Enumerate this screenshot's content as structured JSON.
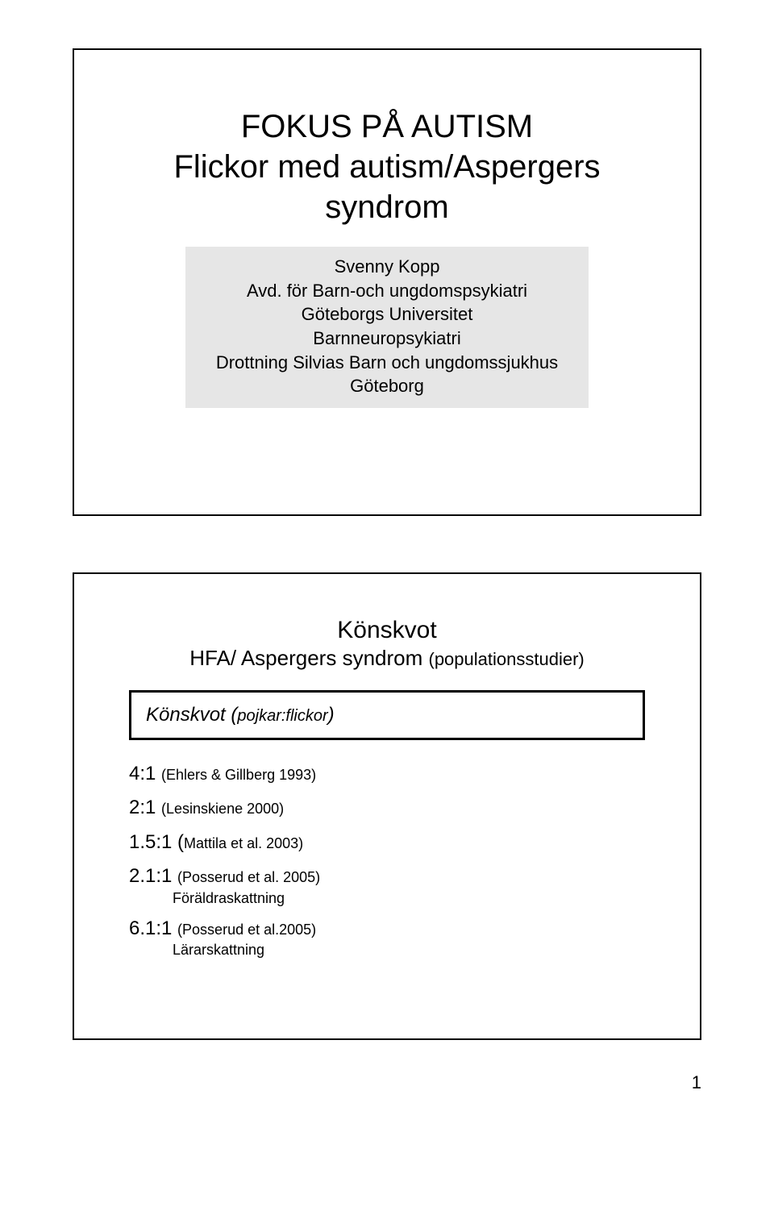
{
  "slide1": {
    "title_line1": "FOKUS PÅ AUTISM",
    "title_line2": "Flickor med autism/Aspergers",
    "title_line3": "syndrom",
    "author_name": "Svenny Kopp",
    "author_line2": "Avd. för Barn-och ungdomspsykiatri",
    "author_line3": "Göteborgs Universitet",
    "author_line4": "Barnneuropsykiatri",
    "author_line5": "Drottning Silvias Barn och ungdomssjukhus",
    "author_line6": "Göteborg"
  },
  "slide2": {
    "title": "Könskvot",
    "subtitle_a": "HFA/ Aspergers syndrom ",
    "subtitle_b": "(populationsstudier)",
    "box_label_a": "Könskvot (",
    "box_label_b": "pojkar:flickor",
    "box_label_c": ")",
    "ratios": [
      {
        "ratio": "4:1 ",
        "cite": "(Ehlers & Gillberg 1993)",
        "sub": ""
      },
      {
        "ratio": "2:1 ",
        "cite": "(Lesinskiene 2000)",
        "sub": ""
      },
      {
        "ratio": "1.5:1 (",
        "cite": "Mattila et al. 2003)",
        "sub": ""
      },
      {
        "ratio": "2.1:1 ",
        "cite": "(Posserud et al. 2005)",
        "sub": "Föräldraskattning"
      },
      {
        "ratio": "6.1:1 ",
        "cite": "(Posserud et al.2005)",
        "sub": "Lärarskattning"
      }
    ]
  },
  "page_number": "1"
}
